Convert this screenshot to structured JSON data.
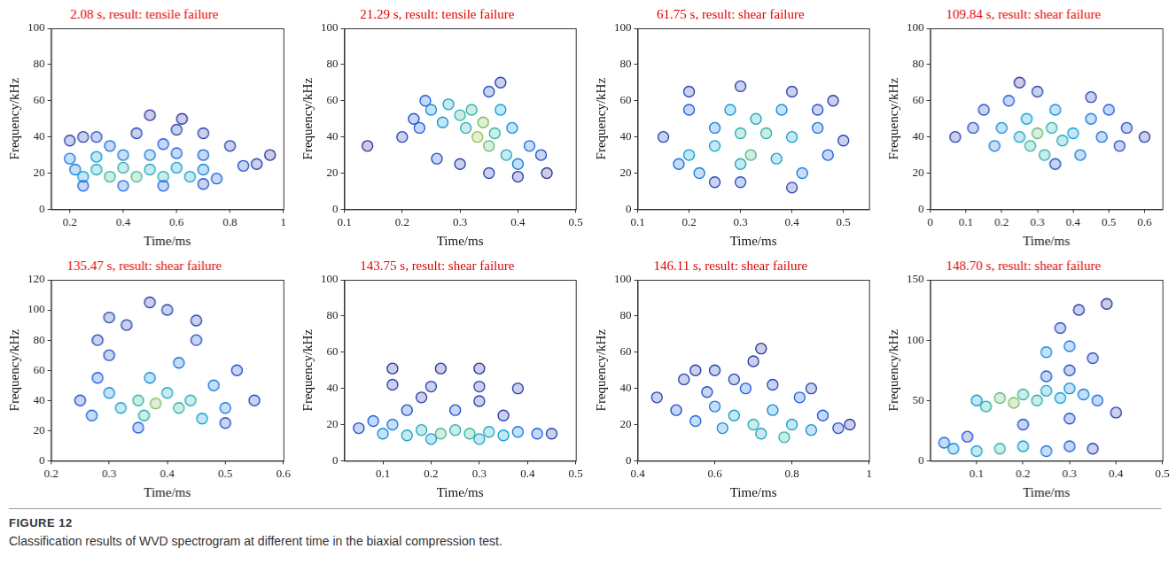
{
  "figure_label": "FIGURE 12",
  "caption": "Classification results of WVD spectrogram at different time in the biaxial compression test.",
  "chart_data": [
    {
      "type": "contour",
      "title": "2.08 s, result: tensile failure",
      "x_label": "Time/ms",
      "y_label": "Frequency/kHz",
      "xlim": [
        0.13,
        1.0
      ],
      "xticks": [
        0.2,
        0.4,
        0.6,
        0.8,
        1
      ],
      "ylim": [
        0,
        100
      ],
      "yticks": [
        0,
        20,
        40,
        60,
        80,
        100
      ],
      "zlim": [
        0,
        1
      ],
      "grid": false,
      "points": [
        [
          0.2,
          38,
          0.1
        ],
        [
          0.25,
          40,
          0.1
        ],
        [
          0.3,
          40,
          0.15
        ],
        [
          0.45,
          42,
          0.1
        ],
        [
          0.6,
          44,
          0.1
        ],
        [
          0.7,
          42,
          0.1
        ],
        [
          0.5,
          52,
          0.05
        ],
        [
          0.62,
          50,
          0.05
        ],
        [
          0.2,
          28,
          0.3
        ],
        [
          0.3,
          29,
          0.4
        ],
        [
          0.4,
          30,
          0.3
        ],
        [
          0.5,
          30,
          0.3
        ],
        [
          0.6,
          31,
          0.25
        ],
        [
          0.7,
          30,
          0.2
        ],
        [
          0.22,
          22,
          0.3
        ],
        [
          0.3,
          22,
          0.5
        ],
        [
          0.4,
          23,
          0.55
        ],
        [
          0.5,
          22,
          0.5
        ],
        [
          0.6,
          23,
          0.4
        ],
        [
          0.7,
          22,
          0.3
        ],
        [
          0.85,
          24,
          0.15
        ],
        [
          0.25,
          18,
          0.4
        ],
        [
          0.35,
          18,
          0.6
        ],
        [
          0.45,
          18,
          0.65
        ],
        [
          0.55,
          18,
          0.55
        ],
        [
          0.65,
          18,
          0.45
        ],
        [
          0.75,
          17,
          0.2
        ],
        [
          0.25,
          13,
          0.2
        ],
        [
          0.4,
          13,
          0.25
        ],
        [
          0.55,
          13,
          0.2
        ],
        [
          0.7,
          14,
          0.15
        ],
        [
          0.9,
          25,
          0.1
        ],
        [
          0.95,
          30,
          0.05
        ],
        [
          0.8,
          35,
          0.1
        ],
        [
          0.35,
          35,
          0.25
        ],
        [
          0.55,
          36,
          0.2
        ]
      ]
    },
    {
      "type": "contour",
      "title": "21.29 s, result: tensile failure",
      "x_label": "Time/ms",
      "y_label": "Frequency/kHz",
      "xlim": [
        0.1,
        0.5
      ],
      "xticks": [
        0.1,
        0.2,
        0.3,
        0.4,
        0.5
      ],
      "ylim": [
        0,
        100
      ],
      "yticks": [
        0,
        20,
        40,
        60,
        80,
        100
      ],
      "zlim": [
        0,
        1
      ],
      "grid": false,
      "points": [
        [
          0.14,
          35,
          0.05
        ],
        [
          0.2,
          40,
          0.1
        ],
        [
          0.22,
          50,
          0.15
        ],
        [
          0.24,
          60,
          0.2
        ],
        [
          0.25,
          55,
          0.35
        ],
        [
          0.27,
          48,
          0.4
        ],
        [
          0.28,
          58,
          0.45
        ],
        [
          0.3,
          52,
          0.6
        ],
        [
          0.31,
          45,
          0.55
        ],
        [
          0.32,
          55,
          0.6
        ],
        [
          0.33,
          40,
          0.8
        ],
        [
          0.34,
          48,
          0.75
        ],
        [
          0.35,
          35,
          0.7
        ],
        [
          0.36,
          42,
          0.6
        ],
        [
          0.37,
          55,
          0.4
        ],
        [
          0.38,
          30,
          0.5
        ],
        [
          0.39,
          45,
          0.35
        ],
        [
          0.4,
          25,
          0.3
        ],
        [
          0.42,
          35,
          0.25
        ],
        [
          0.44,
          30,
          0.15
        ],
        [
          0.3,
          25,
          0.1
        ],
        [
          0.35,
          20,
          0.1
        ],
        [
          0.4,
          18,
          0.08
        ],
        [
          0.45,
          20,
          0.05
        ],
        [
          0.37,
          70,
          0.1
        ],
        [
          0.35,
          65,
          0.15
        ],
        [
          0.26,
          28,
          0.15
        ],
        [
          0.23,
          45,
          0.2
        ]
      ]
    },
    {
      "type": "contour",
      "title": "61.75 s, result: shear failure",
      "x_label": "Time/ms",
      "y_label": "Frequency/kHz",
      "xlim": [
        0.1,
        0.55
      ],
      "xticks": [
        0.1,
        0.2,
        0.3,
        0.4,
        0.5
      ],
      "ylim": [
        0,
        100
      ],
      "yticks": [
        0,
        20,
        40,
        60,
        80,
        100
      ],
      "zlim": [
        0,
        1
      ],
      "grid": false,
      "points": [
        [
          0.15,
          40,
          0.1
        ],
        [
          0.18,
          25,
          0.25
        ],
        [
          0.2,
          30,
          0.4
        ],
        [
          0.22,
          20,
          0.3
        ],
        [
          0.25,
          35,
          0.45
        ],
        [
          0.25,
          45,
          0.3
        ],
        [
          0.28,
          55,
          0.4
        ],
        [
          0.3,
          42,
          0.55
        ],
        [
          0.3,
          25,
          0.5
        ],
        [
          0.32,
          30,
          0.65
        ],
        [
          0.33,
          50,
          0.5
        ],
        [
          0.35,
          42,
          0.6
        ],
        [
          0.37,
          28,
          0.45
        ],
        [
          0.38,
          55,
          0.35
        ],
        [
          0.4,
          40,
          0.45
        ],
        [
          0.42,
          20,
          0.3
        ],
        [
          0.45,
          45,
          0.25
        ],
        [
          0.47,
          30,
          0.2
        ],
        [
          0.5,
          38,
          0.1
        ],
        [
          0.2,
          65,
          0.1
        ],
        [
          0.3,
          68,
          0.1
        ],
        [
          0.4,
          65,
          0.1
        ],
        [
          0.48,
          60,
          0.08
        ],
        [
          0.3,
          15,
          0.15
        ],
        [
          0.4,
          12,
          0.1
        ],
        [
          0.2,
          55,
          0.2
        ],
        [
          0.45,
          55,
          0.15
        ],
        [
          0.25,
          15,
          0.12
        ]
      ]
    },
    {
      "type": "contour",
      "title": "109.84 s, result: shear failure",
      "x_label": "Time/ms",
      "y_label": "Frequency/kHz",
      "xlim": [
        0,
        0.65
      ],
      "xticks": [
        0,
        0.1,
        0.2,
        0.3,
        0.4,
        0.5,
        0.6
      ],
      "ylim": [
        0,
        100
      ],
      "yticks": [
        0,
        20,
        40,
        60,
        80,
        100
      ],
      "zlim": [
        0,
        1
      ],
      "grid": false,
      "points": [
        [
          0.07,
          40,
          0.1
        ],
        [
          0.12,
          45,
          0.15
        ],
        [
          0.15,
          55,
          0.15
        ],
        [
          0.18,
          35,
          0.3
        ],
        [
          0.2,
          45,
          0.35
        ],
        [
          0.22,
          60,
          0.2
        ],
        [
          0.25,
          40,
          0.45
        ],
        [
          0.27,
          50,
          0.4
        ],
        [
          0.28,
          35,
          0.6
        ],
        [
          0.3,
          42,
          0.7
        ],
        [
          0.32,
          30,
          0.55
        ],
        [
          0.34,
          45,
          0.55
        ],
        [
          0.35,
          55,
          0.35
        ],
        [
          0.37,
          38,
          0.5
        ],
        [
          0.4,
          42,
          0.4
        ],
        [
          0.42,
          30,
          0.3
        ],
        [
          0.45,
          50,
          0.3
        ],
        [
          0.48,
          40,
          0.25
        ],
        [
          0.5,
          55,
          0.2
        ],
        [
          0.53,
          35,
          0.15
        ],
        [
          0.55,
          45,
          0.15
        ],
        [
          0.6,
          40,
          0.08
        ],
        [
          0.35,
          25,
          0.15
        ],
        [
          0.3,
          65,
          0.1
        ],
        [
          0.45,
          62,
          0.1
        ],
        [
          0.25,
          70,
          0.05
        ]
      ]
    },
    {
      "type": "contour",
      "title": "135.47 s, result: shear failure",
      "x_label": "Time/ms",
      "y_label": "Frequency/kHz",
      "xlim": [
        0.2,
        0.6
      ],
      "xticks": [
        0.2,
        0.3,
        0.4,
        0.5,
        0.6
      ],
      "ylim": [
        0,
        120
      ],
      "yticks": [
        0,
        20,
        40,
        60,
        80,
        100,
        120
      ],
      "zlim": [
        0,
        1
      ],
      "grid": false,
      "points": [
        [
          0.25,
          40,
          0.15
        ],
        [
          0.27,
          30,
          0.25
        ],
        [
          0.28,
          55,
          0.2
        ],
        [
          0.3,
          45,
          0.35
        ],
        [
          0.3,
          70,
          0.15
        ],
        [
          0.32,
          35,
          0.45
        ],
        [
          0.33,
          90,
          0.1
        ],
        [
          0.35,
          40,
          0.6
        ],
        [
          0.36,
          30,
          0.55
        ],
        [
          0.37,
          55,
          0.35
        ],
        [
          0.38,
          38,
          0.75
        ],
        [
          0.4,
          45,
          0.5
        ],
        [
          0.4,
          100,
          0.1
        ],
        [
          0.42,
          35,
          0.6
        ],
        [
          0.42,
          65,
          0.25
        ],
        [
          0.44,
          40,
          0.55
        ],
        [
          0.45,
          80,
          0.15
        ],
        [
          0.46,
          28,
          0.4
        ],
        [
          0.48,
          50,
          0.3
        ],
        [
          0.5,
          35,
          0.3
        ],
        [
          0.52,
          60,
          0.15
        ],
        [
          0.55,
          40,
          0.15
        ],
        [
          0.3,
          95,
          0.1
        ],
        [
          0.37,
          105,
          0.08
        ],
        [
          0.45,
          93,
          0.1
        ],
        [
          0.35,
          22,
          0.2
        ],
        [
          0.5,
          25,
          0.15
        ],
        [
          0.28,
          80,
          0.1
        ]
      ]
    },
    {
      "type": "contour",
      "title": "143.75 s, result: shear failure",
      "x_label": "Time/ms",
      "y_label": "Frequency/kHz",
      "xlim": [
        0.02,
        0.5
      ],
      "xticks": [
        0.1,
        0.2,
        0.3,
        0.4,
        0.5
      ],
      "ylim": [
        0,
        100
      ],
      "yticks": [
        0,
        20,
        40,
        60,
        80,
        100
      ],
      "zlim": [
        0,
        1
      ],
      "grid": false,
      "points": [
        [
          0.05,
          18,
          0.15
        ],
        [
          0.08,
          22,
          0.2
        ],
        [
          0.1,
          15,
          0.35
        ],
        [
          0.12,
          20,
          0.3
        ],
        [
          0.15,
          14,
          0.45
        ],
        [
          0.18,
          17,
          0.5
        ],
        [
          0.2,
          12,
          0.4
        ],
        [
          0.22,
          15,
          0.65
        ],
        [
          0.25,
          17,
          0.55
        ],
        [
          0.28,
          15,
          0.6
        ],
        [
          0.3,
          12,
          0.45
        ],
        [
          0.32,
          16,
          0.5
        ],
        [
          0.35,
          14,
          0.4
        ],
        [
          0.38,
          16,
          0.3
        ],
        [
          0.42,
          15,
          0.2
        ],
        [
          0.45,
          15,
          0.1
        ],
        [
          0.15,
          28,
          0.15
        ],
        [
          0.25,
          28,
          0.15
        ],
        [
          0.35,
          25,
          0.1
        ],
        [
          0.12,
          42,
          0.1
        ],
        [
          0.2,
          41,
          0.1
        ],
        [
          0.3,
          41,
          0.1
        ],
        [
          0.38,
          40,
          0.08
        ],
        [
          0.12,
          51,
          0.05
        ],
        [
          0.22,
          51,
          0.05
        ],
        [
          0.3,
          51,
          0.05
        ],
        [
          0.18,
          35,
          0.08
        ],
        [
          0.3,
          33,
          0.08
        ]
      ]
    },
    {
      "type": "contour",
      "title": "146.11 s, result: shear failure",
      "x_label": "Time/ms",
      "y_label": "Frequency/kHz",
      "xlim": [
        0.4,
        1
      ],
      "xticks": [
        0.4,
        0.6,
        0.8,
        1
      ],
      "ylim": [
        0,
        100
      ],
      "yticks": [
        0,
        20,
        40,
        60,
        80,
        100
      ],
      "zlim": [
        0,
        1
      ],
      "grid": false,
      "points": [
        [
          0.45,
          35,
          0.1
        ],
        [
          0.5,
          28,
          0.15
        ],
        [
          0.52,
          45,
          0.1
        ],
        [
          0.55,
          22,
          0.25
        ],
        [
          0.58,
          38,
          0.15
        ],
        [
          0.6,
          30,
          0.3
        ],
        [
          0.62,
          18,
          0.35
        ],
        [
          0.65,
          25,
          0.45
        ],
        [
          0.68,
          40,
          0.2
        ],
        [
          0.7,
          20,
          0.55
        ],
        [
          0.72,
          15,
          0.5
        ],
        [
          0.75,
          28,
          0.35
        ],
        [
          0.78,
          13,
          0.6
        ],
        [
          0.8,
          20,
          0.45
        ],
        [
          0.82,
          35,
          0.2
        ],
        [
          0.85,
          17,
          0.35
        ],
        [
          0.88,
          25,
          0.2
        ],
        [
          0.92,
          18,
          0.15
        ],
        [
          0.95,
          20,
          0.08
        ],
        [
          0.6,
          50,
          0.1
        ],
        [
          0.7,
          55,
          0.08
        ],
        [
          0.72,
          62,
          0.05
        ],
        [
          0.65,
          45,
          0.12
        ],
        [
          0.75,
          42,
          0.12
        ],
        [
          0.85,
          40,
          0.1
        ],
        [
          0.55,
          50,
          0.08
        ]
      ]
    },
    {
      "type": "contour",
      "title": "148.70 s, result: shear failure",
      "x_label": "Time/ms",
      "y_label": "Frequency/kHz",
      "xlim": [
        0,
        0.5
      ],
      "xticks": [
        0.1,
        0.2,
        0.3,
        0.4,
        0.5
      ],
      "ylim": [
        0,
        150
      ],
      "yticks": [
        0,
        50,
        100,
        150
      ],
      "zlim": [
        0,
        1
      ],
      "grid": false,
      "points": [
        [
          0.03,
          15,
          0.25
        ],
        [
          0.05,
          10,
          0.35
        ],
        [
          0.08,
          20,
          0.15
        ],
        [
          0.1,
          8,
          0.45
        ],
        [
          0.15,
          10,
          0.55
        ],
        [
          0.2,
          12,
          0.4
        ],
        [
          0.25,
          8,
          0.3
        ],
        [
          0.3,
          12,
          0.2
        ],
        [
          0.35,
          10,
          0.1
        ],
        [
          0.1,
          50,
          0.4
        ],
        [
          0.12,
          45,
          0.55
        ],
        [
          0.15,
          52,
          0.7
        ],
        [
          0.18,
          48,
          0.75
        ],
        [
          0.2,
          55,
          0.6
        ],
        [
          0.23,
          50,
          0.55
        ],
        [
          0.25,
          58,
          0.45
        ],
        [
          0.28,
          52,
          0.4
        ],
        [
          0.3,
          60,
          0.35
        ],
        [
          0.33,
          55,
          0.3
        ],
        [
          0.36,
          50,
          0.25
        ],
        [
          0.25,
          70,
          0.2
        ],
        [
          0.3,
          75,
          0.15
        ],
        [
          0.25,
          90,
          0.35
        ],
        [
          0.3,
          95,
          0.3
        ],
        [
          0.28,
          110,
          0.15
        ],
        [
          0.35,
          85,
          0.15
        ],
        [
          0.32,
          125,
          0.08
        ],
        [
          0.38,
          130,
          0.05
        ],
        [
          0.2,
          30,
          0.15
        ],
        [
          0.3,
          35,
          0.15
        ],
        [
          0.4,
          40,
          0.1
        ]
      ]
    }
  ]
}
